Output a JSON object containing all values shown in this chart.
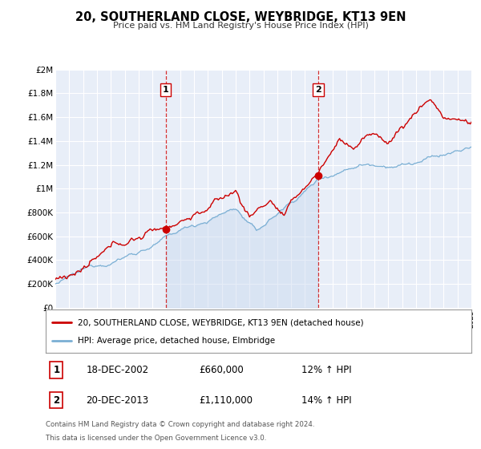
{
  "title": "20, SOUTHERLAND CLOSE, WEYBRIDGE, KT13 9EN",
  "subtitle": "Price paid vs. HM Land Registry's House Price Index (HPI)",
  "bg_color": "#e8eef8",
  "plot_bg_color": "#e8eef8",
  "sale1_year": 2002.96,
  "sale1_price": 660000,
  "sale1_label": "1",
  "sale1_date": "18-DEC-2002",
  "sale1_hpi": "12% ↑ HPI",
  "sale2_year": 2013.96,
  "sale2_price": 1110000,
  "sale2_label": "2",
  "sale2_date": "20-DEC-2013",
  "sale2_hpi": "14% ↑ HPI",
  "red_color": "#cc0000",
  "blue_color": "#7aafd4",
  "fill_color": "#c8d8ee",
  "legend_label1": "20, SOUTHERLAND CLOSE, WEYBRIDGE, KT13 9EN (detached house)",
  "legend_label2": "HPI: Average price, detached house, Elmbridge",
  "footer1": "Contains HM Land Registry data © Crown copyright and database right 2024.",
  "footer2": "This data is licensed under the Open Government Licence v3.0.",
  "ylim_max": 2000000,
  "xmin": 1995,
  "xmax": 2025
}
